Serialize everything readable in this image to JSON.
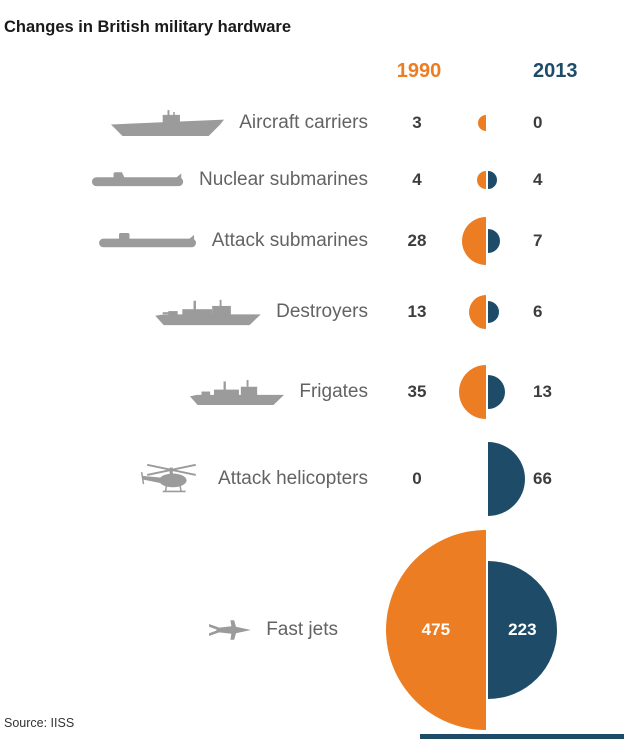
{
  "title": "Changes in British military hardware",
  "columns": {
    "y1990": "1990",
    "y2013": "2013"
  },
  "source": "Source: IISS",
  "colors": {
    "orange": "#ED7D23",
    "navy": "#1E4C68",
    "icon": "#9B9B9B",
    "label": "#636363",
    "value": "#3D3D3D"
  },
  "rows": [
    {
      "label": "Aircraft carriers",
      "icon": "aircraft-carrier-icon",
      "v1990": 3,
      "v2013": 0
    },
    {
      "label": "Nuclear submarines",
      "icon": "nuclear-submarine-icon",
      "v1990": 4,
      "v2013": 4
    },
    {
      "label": "Attack submarines",
      "icon": "attack-submarine-icon",
      "v1990": 28,
      "v2013": 7
    },
    {
      "label": "Destroyers",
      "icon": "destroyer-icon",
      "v1990": 13,
      "v2013": 6
    },
    {
      "label": "Frigates",
      "icon": "frigate-icon",
      "v1990": 35,
      "v2013": 13
    },
    {
      "label": "Attack helicopters",
      "icon": "attack-helicopter-icon",
      "v1990": 0,
      "v2013": 66
    },
    {
      "label": "Fast jets",
      "icon": "fast-jet-icon",
      "v1990": 475,
      "v2013": 223,
      "values_inside": true
    }
  ],
  "chart_data": {
    "type": "bar",
    "representation": "paired area-proportional semicircles (left half = 1990, right half = 2013)",
    "title": "Changes in British military hardware",
    "categories": [
      "Aircraft carriers",
      "Nuclear submarines",
      "Attack submarines",
      "Destroyers",
      "Frigates",
      "Attack helicopters",
      "Fast jets"
    ],
    "series": [
      {
        "name": "1990",
        "color": "#ED7D23",
        "values": [
          3,
          4,
          28,
          13,
          35,
          0,
          475
        ]
      },
      {
        "name": "2013",
        "color": "#1E4C68",
        "values": [
          0,
          4,
          7,
          6,
          13,
          66,
          223
        ]
      }
    ],
    "legend_position": "top",
    "source": "Source: IISS"
  }
}
